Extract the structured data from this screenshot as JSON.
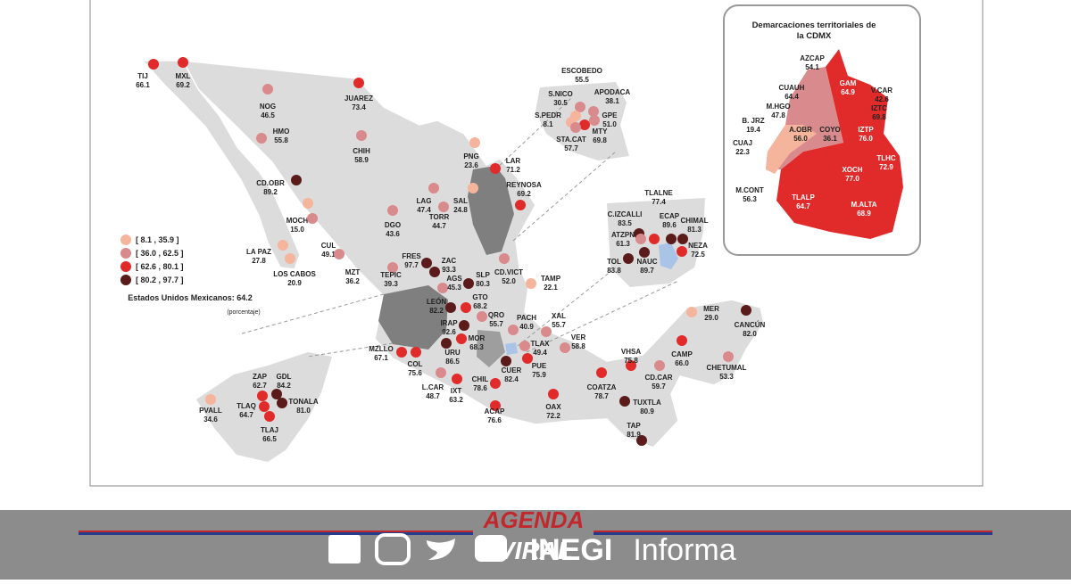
{
  "national": {
    "label": "Estados Unidos Mexicanos: 64.2",
    "unit": "(porcentaje)"
  },
  "legend": {
    "items": [
      {
        "label": "[  8.1 , 35.9 ]",
        "color": "#f5b49c"
      },
      {
        "label": "[ 36.0 , 62.5 ]",
        "color": "#d98a8c"
      },
      {
        "label": "[ 62.6 , 80.1 ]",
        "color": "#e12a2a"
      },
      {
        "label": "[ 80.2 , 97.7 ]",
        "color": "#5b1b1b"
      }
    ]
  },
  "points": [
    {
      "name": "TIJ",
      "value": "66.1",
      "color": "#e12a2a"
    },
    {
      "name": "MXL",
      "value": "69.2",
      "color": "#e12a2a"
    },
    {
      "name": "NOG",
      "value": "46.5",
      "color": "#d98a8c"
    },
    {
      "name": "JUAREZ",
      "value": "73.4",
      "color": "#e12a2a"
    },
    {
      "name": "HMO",
      "value": "55.8",
      "color": "#d98a8c"
    },
    {
      "name": "CHIH",
      "value": "58.9",
      "color": "#d98a8c"
    },
    {
      "name": "CD.OBR",
      "value": "89.2",
      "color": "#5b1b1b"
    },
    {
      "name": "MOCH",
      "value": "15.0",
      "color": "#f5b49c"
    },
    {
      "name": "LA PAZ",
      "value": "27.8",
      "color": "#f5b49c"
    },
    {
      "name": "LOS CABOS",
      "value": "20.9",
      "color": "#f5b49c"
    },
    {
      "name": "CUL",
      "value": "49.1",
      "color": "#d98a8c"
    },
    {
      "name": "DGO",
      "value": "43.6",
      "color": "#d98a8c"
    },
    {
      "name": "MZT",
      "value": "36.2",
      "color": "#d98a8c"
    },
    {
      "name": "LAG",
      "value": "47.4",
      "color": "#d98a8c"
    },
    {
      "name": "TORR",
      "value": "44.7",
      "color": "#d98a8c"
    },
    {
      "name": "SAL",
      "value": "24.8",
      "color": "#f5b49c"
    },
    {
      "name": "PNG",
      "value": "23.6",
      "color": "#f5b49c"
    },
    {
      "name": "LAR",
      "value": "71.2",
      "color": "#e12a2a"
    },
    {
      "name": "REYNOSA",
      "value": "69.2",
      "color": "#e12a2a"
    },
    {
      "name": "ESCOBEDO",
      "value": "55.5",
      "color": "#d98a8c"
    },
    {
      "name": "S.NICO",
      "value": "30.5",
      "color": "#f5b49c"
    },
    {
      "name": "APODACA",
      "value": "38.1",
      "color": "#d98a8c"
    },
    {
      "name": "S.PEDR",
      "value": "8.1",
      "color": "#f5b49c"
    },
    {
      "name": "GPE",
      "value": "51.0",
      "color": "#d98a8c"
    },
    {
      "name": "MTY",
      "value": "69.8",
      "color": "#e12a2a"
    },
    {
      "name": "STA.CAT",
      "value": "57.7",
      "color": "#d98a8c"
    },
    {
      "name": "TEPIC",
      "value": "39.3",
      "color": "#d98a8c"
    },
    {
      "name": "FRES",
      "value": "97.7",
      "color": "#5b1b1b"
    },
    {
      "name": "ZAC",
      "value": "93.3",
      "color": "#5b1b1b"
    },
    {
      "name": "AGS",
      "value": "45.3",
      "color": "#d98a8c"
    },
    {
      "name": "SLP",
      "value": "80.3",
      "color": "#5b1b1b"
    },
    {
      "name": "CD.VICT",
      "value": "52.0",
      "color": "#d98a8c"
    },
    {
      "name": "TAMP",
      "value": "22.1",
      "color": "#f5b49c"
    },
    {
      "name": "LEÓN",
      "value": "82.2",
      "color": "#5b1b1b"
    },
    {
      "name": "GTO",
      "value": "68.2",
      "color": "#e12a2a"
    },
    {
      "name": "IRAP",
      "value": "92.6",
      "color": "#5b1b1b"
    },
    {
      "name": "QRO",
      "value": "55.7",
      "color": "#d98a8c"
    },
    {
      "name": "PACH",
      "value": "40.9",
      "color": "#d98a8c"
    },
    {
      "name": "XAL",
      "value": "55.7",
      "color": "#d98a8c"
    },
    {
      "name": "MZLLO",
      "value": "67.1",
      "color": "#e12a2a"
    },
    {
      "name": "COL",
      "value": "75.6",
      "color": "#e12a2a"
    },
    {
      "name": "URU",
      "value": "86.5",
      "color": "#5b1b1b"
    },
    {
      "name": "MOR",
      "value": "68.3",
      "color": "#e12a2a"
    },
    {
      "name": "TLAX",
      "value": "49.4",
      "color": "#d98a8c"
    },
    {
      "name": "VER",
      "value": "58.8",
      "color": "#d98a8c"
    },
    {
      "name": "L.CAR",
      "value": "48.7",
      "color": "#d98a8c"
    },
    {
      "name": "IXT",
      "value": "63.2",
      "color": "#e12a2a"
    },
    {
      "name": "CHIL",
      "value": "78.6",
      "color": "#e12a2a"
    },
    {
      "name": "CUER",
      "value": "82.4",
      "color": "#5b1b1b"
    },
    {
      "name": "PUE",
      "value": "75.9",
      "color": "#e12a2a"
    },
    {
      "name": "OAX",
      "value": "72.2",
      "color": "#e12a2a"
    },
    {
      "name": "ACAP",
      "value": "76.6",
      "color": "#e12a2a"
    },
    {
      "name": "COATZA",
      "value": "78.7",
      "color": "#e12a2a"
    },
    {
      "name": "VHSA",
      "value": "75.8",
      "color": "#e12a2a"
    },
    {
      "name": "CD.CAR",
      "value": "59.7",
      "color": "#d98a8c"
    },
    {
      "name": "CAMP",
      "value": "66.0",
      "color": "#e12a2a"
    },
    {
      "name": "MER",
      "value": "29.0",
      "color": "#f5b49c"
    },
    {
      "name": "CANCÚN",
      "value": "82.0",
      "color": "#5b1b1b"
    },
    {
      "name": "CHETUMAL",
      "value": "53.3",
      "color": "#d98a8c"
    },
    {
      "name": "TUXTLA",
      "value": "80.9",
      "color": "#5b1b1b"
    },
    {
      "name": "TAP",
      "value": "81.9",
      "color": "#5b1b1b"
    },
    {
      "name": "TLALNE",
      "value": "77.4",
      "color": "#e12a2a"
    },
    {
      "name": "C.IZCALLI",
      "value": "83.5",
      "color": "#5b1b1b"
    },
    {
      "name": "ECAP",
      "value": "89.6",
      "color": "#5b1b1b"
    },
    {
      "name": "CHIMAL",
      "value": "81.3",
      "color": "#5b1b1b"
    },
    {
      "name": "ATZPN",
      "value": "61.3",
      "color": "#d98a8c"
    },
    {
      "name": "NEZA",
      "value": "72.5",
      "color": "#e12a2a"
    },
    {
      "name": "TOL",
      "value": "83.8",
      "color": "#5b1b1b"
    },
    {
      "name": "NAUC",
      "value": "89.7",
      "color": "#5b1b1b"
    },
    {
      "name": "PVALL",
      "value": "34.6",
      "color": "#f5b49c"
    },
    {
      "name": "ZAP",
      "value": "62.7",
      "color": "#e12a2a"
    },
    {
      "name": "GDL",
      "value": "84.2",
      "color": "#5b1b1b"
    },
    {
      "name": "TLAQ",
      "value": "64.7",
      "color": "#e12a2a"
    },
    {
      "name": "TONALA",
      "value": "81.0",
      "color": "#5b1b1b"
    },
    {
      "name": "TLAJ",
      "value": "66.5",
      "color": "#e12a2a"
    }
  ],
  "cdmx": {
    "title": "Demarcaciones territoriales de la CDMX",
    "areas": [
      {
        "name": "AZCAP",
        "value": "54.1"
      },
      {
        "name": "GAM",
        "value": "64.9"
      },
      {
        "name": "CUAUH",
        "value": "64.4"
      },
      {
        "name": "V.CAR",
        "value": "42.6"
      },
      {
        "name": "M.HGO",
        "value": "47.8"
      },
      {
        "name": "IZTC",
        "value": "69.8"
      },
      {
        "name": "B. JRZ",
        "value": "19.4"
      },
      {
        "name": "A.OBR",
        "value": "56.0"
      },
      {
        "name": "COYO",
        "value": "36.1"
      },
      {
        "name": "IZTP",
        "value": "76.0"
      },
      {
        "name": "CUAJ",
        "value": "22.3"
      },
      {
        "name": "TLHC",
        "value": "72.9"
      },
      {
        "name": "XOCH",
        "value": "77.0"
      },
      {
        "name": "M.CONT",
        "value": "56.3"
      },
      {
        "name": "TLALP",
        "value": "64.7"
      },
      {
        "name": "M.ALTA",
        "value": "68.9"
      }
    ]
  },
  "footer": {
    "brand_top": "AGENDA",
    "brand_bottom": "VIRAL",
    "inegi": "INEGI",
    "informa": "Informa"
  }
}
